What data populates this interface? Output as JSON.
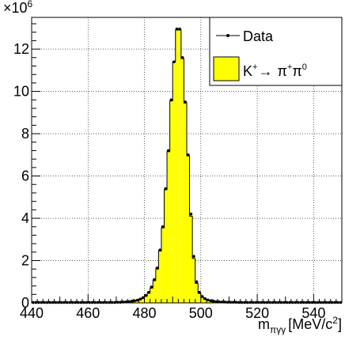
{
  "chart_data": {
    "type": "bar",
    "title": "",
    "xlabel_main": "m",
    "xlabel_sub": "πγγ",
    "xlabel_unit": "[MeV/c",
    "xlabel_unit_sup": "2",
    "xlabel_close": "]",
    "ylabel": "",
    "y_multiplier_base": "×10",
    "y_multiplier_exp": "6",
    "xlim": [
      440,
      550
    ],
    "ylim": [
      0,
      13.5
    ],
    "x_ticks": [
      440,
      460,
      480,
      500,
      520,
      540
    ],
    "y_ticks": [
      0,
      2,
      4,
      6,
      8,
      10,
      12
    ],
    "grid": true,
    "legend_position": "top-right",
    "bin_width": 1,
    "bins_x": [
      440,
      441,
      442,
      443,
      444,
      445,
      446,
      447,
      448,
      449,
      450,
      451,
      452,
      453,
      454,
      455,
      456,
      457,
      458,
      459,
      460,
      461,
      462,
      463,
      464,
      465,
      466,
      467,
      468,
      469,
      470,
      471,
      472,
      473,
      474,
      475,
      476,
      477,
      478,
      479,
      480,
      481,
      482,
      483,
      484,
      485,
      486,
      487,
      488,
      489,
      490,
      491,
      492,
      493,
      494,
      495,
      496,
      497,
      498,
      499,
      500,
      501,
      502,
      503,
      504,
      505,
      506,
      507,
      508,
      509,
      510,
      511,
      512,
      513,
      514,
      515,
      516,
      517,
      518,
      519,
      520,
      521,
      522,
      523,
      524,
      525,
      526,
      527,
      528,
      529,
      530,
      531,
      532,
      533,
      534,
      535,
      536,
      537,
      538,
      539,
      540,
      541,
      542,
      543,
      544,
      545,
      546,
      547,
      548,
      549
    ],
    "series": [
      {
        "name": "Data",
        "style": "markers",
        "color": "#000000",
        "values": [
          0.02,
          0.02,
          0.02,
          0.02,
          0.02,
          0.02,
          0.02,
          0.02,
          0.02,
          0.02,
          0.02,
          0.02,
          0.02,
          0.02,
          0.02,
          0.02,
          0.02,
          0.02,
          0.02,
          0.02,
          0.02,
          0.02,
          0.02,
          0.02,
          0.02,
          0.02,
          0.02,
          0.02,
          0.02,
          0.02,
          0.03,
          0.03,
          0.04,
          0.05,
          0.06,
          0.08,
          0.1,
          0.13,
          0.18,
          0.25,
          0.35,
          0.5,
          0.75,
          1.1,
          1.65,
          2.5,
          3.6,
          5.4,
          7.2,
          9.6,
          11.4,
          12.95,
          12.95,
          11.6,
          9.5,
          7.0,
          4.2,
          2.2,
          1.0,
          0.5,
          0.3,
          0.2,
          0.14,
          0.1,
          0.08,
          0.06,
          0.05,
          0.04,
          0.04,
          0.03,
          0.03,
          0.03,
          0.03,
          0.02,
          0.02,
          0.02,
          0.02,
          0.02,
          0.02,
          0.02,
          0.02,
          0.02,
          0.02,
          0.02,
          0.02,
          0.02,
          0.02,
          0.02,
          0.02,
          0.02,
          0.02,
          0.02,
          0.02,
          0.02,
          0.02,
          0.02,
          0.02,
          0.02,
          0.02,
          0.02,
          0.02,
          0.02,
          0.02,
          0.02,
          0.02,
          0.02,
          0.02,
          0.02,
          0.02,
          0.02
        ]
      },
      {
        "name_main": "K",
        "name_sup": "+",
        "name_arrow": "→",
        "name_pi": "π",
        "name_pi_sup": "+",
        "name_pi0": "π",
        "name_pi0_sup": "0",
        "style": "filled-histogram",
        "color": "#ffff00",
        "values": [
          0.01,
          0.01,
          0.01,
          0.01,
          0.01,
          0.01,
          0.01,
          0.01,
          0.01,
          0.01,
          0.01,
          0.01,
          0.01,
          0.01,
          0.01,
          0.01,
          0.01,
          0.01,
          0.01,
          0.01,
          0.01,
          0.01,
          0.01,
          0.01,
          0.01,
          0.01,
          0.01,
          0.01,
          0.01,
          0.01,
          0.02,
          0.02,
          0.03,
          0.04,
          0.05,
          0.06,
          0.08,
          0.11,
          0.15,
          0.22,
          0.32,
          0.46,
          0.7,
          1.05,
          1.6,
          2.45,
          3.55,
          5.35,
          7.15,
          9.55,
          11.4,
          12.9,
          12.9,
          11.55,
          9.45,
          6.95,
          4.1,
          2.1,
          0.92,
          0.45,
          0.26,
          0.17,
          0.12,
          0.09,
          0.07,
          0.05,
          0.04,
          0.03,
          0.03,
          0.02,
          0.02,
          0.02,
          0.02,
          0.01,
          0.01,
          0.01,
          0.01,
          0.01,
          0.01,
          0.01,
          0.01,
          0.01,
          0.01,
          0.01,
          0.01,
          0.01,
          0.01,
          0.01,
          0.01,
          0.01,
          0.01,
          0.01,
          0.01,
          0.01,
          0.01,
          0.01,
          0.01,
          0.01,
          0.01,
          0.01,
          0.01,
          0.01,
          0.01,
          0.01,
          0.01,
          0.01,
          0.01,
          0.01,
          0.01,
          0.01
        ]
      }
    ]
  }
}
